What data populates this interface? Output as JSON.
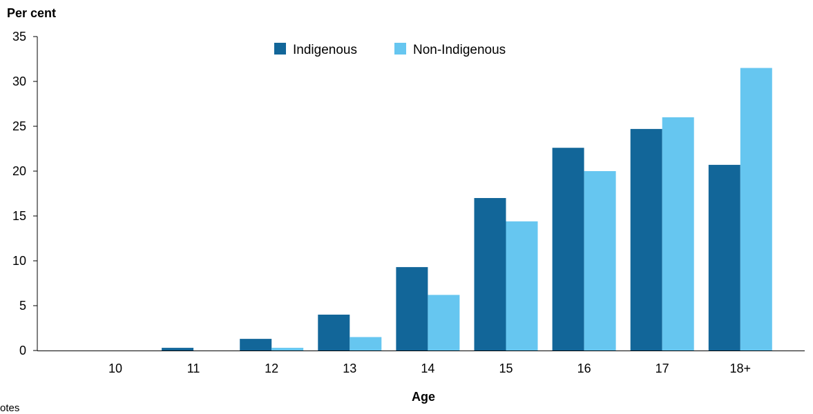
{
  "chart_data": {
    "type": "bar",
    "ylabel": "Per cent",
    "xlabel": "Age",
    "categories": [
      "10",
      "11",
      "12",
      "13",
      "14",
      "15",
      "16",
      "17",
      "18+"
    ],
    "series": [
      {
        "name": "Indigenous",
        "color": "#126699",
        "values": [
          0,
          0.3,
          1.3,
          4.0,
          9.3,
          17.0,
          22.6,
          24.7,
          20.7
        ]
      },
      {
        "name": "Non-Indigenous",
        "color": "#66c6f0",
        "values": [
          0,
          0,
          0.3,
          1.5,
          6.2,
          14.4,
          20.0,
          26.0,
          31.5
        ]
      }
    ],
    "ylim": [
      0,
      35
    ],
    "yticks": [
      0,
      5,
      10,
      15,
      20,
      25,
      30,
      35
    ],
    "grid": false,
    "legend_position": "top-center"
  },
  "footer_fragment": "otes"
}
